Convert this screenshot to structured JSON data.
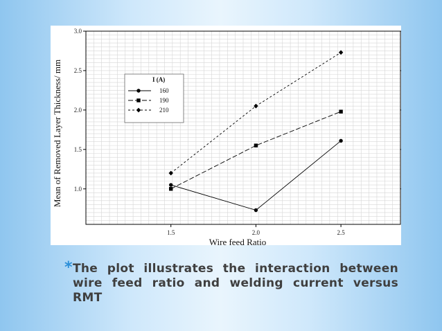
{
  "chart_data": {
    "type": "line",
    "x": [
      1.5,
      2.0,
      2.5
    ],
    "xlabel": "Wire feed Ratio",
    "ylabel": "Mean of Removed Layer Thickness/ mm",
    "x_ticks": [
      "1.5",
      "2.0",
      "2.5"
    ],
    "y_ticks": [
      "1.0",
      "1.5",
      "2.0",
      "2.5",
      "3.0"
    ],
    "xlim": [
      1.0,
      2.85
    ],
    "ylim": [
      0.55,
      3.0
    ],
    "grid": true,
    "legend_title": "I (A)",
    "legend_position": "upper-left",
    "series": [
      {
        "name": "160",
        "values": [
          1.05,
          0.73,
          1.61
        ],
        "marker": "circle",
        "dash": "solid"
      },
      {
        "name": "190",
        "values": [
          1.0,
          1.55,
          1.98
        ],
        "marker": "square",
        "dash": "long-dash"
      },
      {
        "name": "210",
        "values": [
          1.2,
          2.05,
          2.73
        ],
        "marker": "diamond",
        "dash": "short-dash"
      }
    ]
  },
  "caption": {
    "bullet": "*",
    "text": "The plot illustrates the interaction between wire feed ratio and welding current versus RMT"
  }
}
